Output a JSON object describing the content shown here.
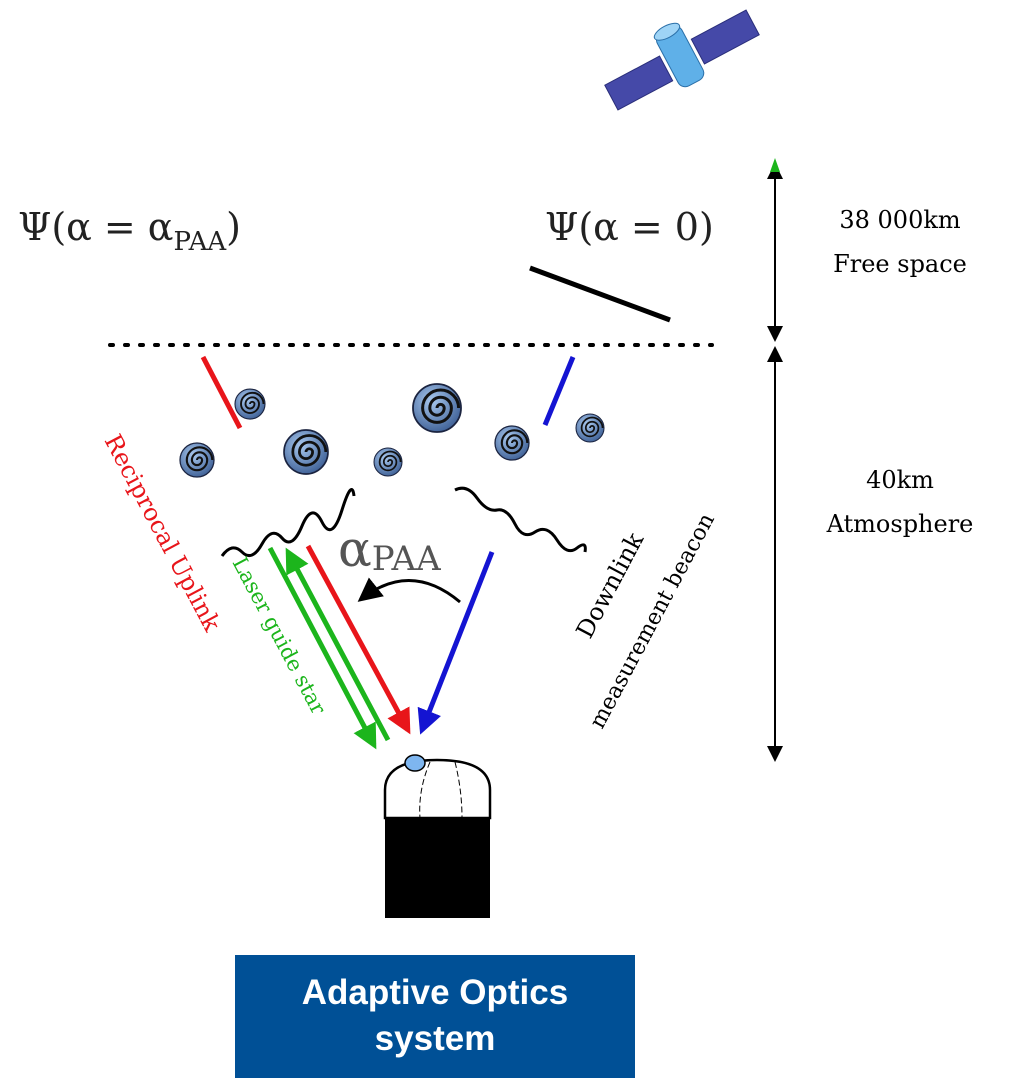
{
  "formulas": {
    "left": {
      "base": "Ψ(α = α",
      "sub": "PAA",
      "end": ")"
    },
    "right": "Ψ(α = 0)",
    "angle": {
      "base": "α",
      "sub": "PAA"
    }
  },
  "distances": {
    "space": {
      "value": "38 000km",
      "label": "Free space"
    },
    "atmosphere": {
      "value": "40km",
      "label": "Atmosphere"
    }
  },
  "beams": {
    "uplink": "Reciprocal Uplink",
    "guide_star": "Laser guide star",
    "downlink": [
      "Downlink",
      "measurement beacon"
    ]
  },
  "system": [
    "Adaptive Optics",
    "system"
  ]
}
